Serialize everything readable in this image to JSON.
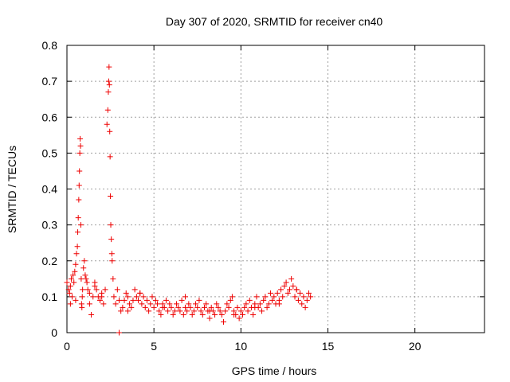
{
  "chart_data": {
    "type": "scatter",
    "title": "Day 307 of 2020, SRMTID for receiver cn40",
    "xlabel": "GPS time / hours",
    "ylabel": "SRMTID / TECUs",
    "xlim": [
      0,
      24
    ],
    "ylim": [
      0,
      0.8
    ],
    "xticks": [
      0,
      5,
      10,
      15,
      20
    ],
    "yticks": [
      0,
      0.1,
      0.2,
      0.3,
      0.4,
      0.5,
      0.6,
      0.7,
      0.8
    ],
    "xtick_labels": [
      "0",
      "5",
      "10",
      "15",
      "20"
    ],
    "ytick_labels": [
      "0",
      "0.1",
      "0.2",
      "0.3",
      "0.4",
      "0.5",
      "0.6",
      "0.7",
      "0.8"
    ],
    "grid": true,
    "marker": "plus",
    "marker_color": "#ee0000",
    "series": [
      {
        "name": "SRMTID",
        "x": [
          0.0,
          0.1,
          0.15,
          0.2,
          0.25,
          0.3,
          0.35,
          0.4,
          0.45,
          0.5,
          0.55,
          0.6,
          0.62,
          0.65,
          0.68,
          0.7,
          0.72,
          0.74,
          0.76,
          0.78,
          0.8,
          0.82,
          0.84,
          0.86,
          0.88,
          0.9,
          0.95,
          1.0,
          1.05,
          1.1,
          1.15,
          1.2,
          1.3,
          1.4,
          1.5,
          1.6,
          1.7,
          1.8,
          1.9,
          2.0,
          2.1,
          2.2,
          2.3,
          2.35,
          2.38,
          2.4,
          2.42,
          2.44,
          2.46,
          2.48,
          2.5,
          2.52,
          2.55,
          2.58,
          2.6,
          2.65,
          2.7,
          2.8,
          2.9,
          3.0,
          3.0,
          3.1,
          3.2,
          3.3,
          3.4,
          3.5,
          3.6,
          3.7,
          3.8,
          3.9,
          4.0,
          4.1,
          4.2,
          4.3,
          4.4,
          4.5,
          4.6,
          4.7,
          4.8,
          4.9,
          5.0,
          5.1,
          5.2,
          5.3,
          5.4,
          5.5,
          5.6,
          5.7,
          5.8,
          5.9,
          6.0,
          6.1,
          6.2,
          6.3,
          6.4,
          6.5,
          6.6,
          6.7,
          6.8,
          6.9,
          7.0,
          7.1,
          7.2,
          7.3,
          7.4,
          7.5,
          7.6,
          7.7,
          7.8,
          7.9,
          8.0,
          8.1,
          8.2,
          8.3,
          8.4,
          8.5,
          8.6,
          8.7,
          8.8,
          8.9,
          9.0,
          9.1,
          9.2,
          9.3,
          9.4,
          9.5,
          9.6,
          9.7,
          9.8,
          9.9,
          10.0,
          10.1,
          10.2,
          10.3,
          10.4,
          10.5,
          10.6,
          10.7,
          10.8,
          10.9,
          11.0,
          11.1,
          11.2,
          11.3,
          11.4,
          11.5,
          11.6,
          11.7,
          11.8,
          11.9,
          12.0,
          12.1,
          12.2,
          12.3,
          12.4,
          12.5,
          12.6,
          12.7,
          12.8,
          12.9,
          13.0,
          13.1,
          13.2,
          13.3,
          13.4,
          13.5,
          13.6,
          13.7,
          13.8,
          13.9,
          14.0,
          0.2,
          0.5,
          1.3,
          1.6,
          2.0,
          3.5,
          4.2,
          5.5,
          6.8,
          8.2,
          9.6,
          10.8,
          12.2,
          13.2
        ],
        "y": [
          0.14,
          0.12,
          0.11,
          0.13,
          0.15,
          0.1,
          0.16,
          0.14,
          0.17,
          0.19,
          0.22,
          0.24,
          0.28,
          0.32,
          0.37,
          0.41,
          0.45,
          0.5,
          0.54,
          0.52,
          0.3,
          0.15,
          0.08,
          0.07,
          0.1,
          0.12,
          0.18,
          0.2,
          0.16,
          0.15,
          0.14,
          0.12,
          0.08,
          0.05,
          0.1,
          0.14,
          0.12,
          0.1,
          0.09,
          0.11,
          0.08,
          0.12,
          0.58,
          0.62,
          0.67,
          0.7,
          0.74,
          0.69,
          0.56,
          0.49,
          0.38,
          0.3,
          0.26,
          0.22,
          0.2,
          0.15,
          0.1,
          0.08,
          0.12,
          0.09,
          0.0,
          0.06,
          0.07,
          0.09,
          0.11,
          0.1,
          0.08,
          0.07,
          0.09,
          0.12,
          0.1,
          0.09,
          0.11,
          0.08,
          0.1,
          0.07,
          0.09,
          0.06,
          0.08,
          0.1,
          0.07,
          0.09,
          0.08,
          0.06,
          0.05,
          0.08,
          0.07,
          0.09,
          0.06,
          0.08,
          0.07,
          0.05,
          0.06,
          0.08,
          0.07,
          0.06,
          0.09,
          0.05,
          0.07,
          0.06,
          0.08,
          0.07,
          0.05,
          0.06,
          0.08,
          0.07,
          0.09,
          0.06,
          0.05,
          0.07,
          0.08,
          0.06,
          0.04,
          0.07,
          0.06,
          0.05,
          0.08,
          0.07,
          0.06,
          0.05,
          0.03,
          0.06,
          0.08,
          0.07,
          0.09,
          0.1,
          0.06,
          0.05,
          0.07,
          0.04,
          0.06,
          0.05,
          0.07,
          0.08,
          0.06,
          0.09,
          0.07,
          0.05,
          0.08,
          0.1,
          0.07,
          0.08,
          0.06,
          0.09,
          0.1,
          0.07,
          0.08,
          0.11,
          0.09,
          0.1,
          0.08,
          0.11,
          0.09,
          0.12,
          0.1,
          0.13,
          0.14,
          0.11,
          0.12,
          0.15,
          0.13,
          0.1,
          0.12,
          0.09,
          0.11,
          0.08,
          0.1,
          0.07,
          0.09,
          0.11,
          0.1,
          0.08,
          0.09,
          0.11,
          0.13,
          0.1,
          0.06,
          0.11,
          0.07,
          0.1,
          0.06,
          0.05,
          0.07,
          0.08,
          0.12
        ]
      }
    ]
  }
}
